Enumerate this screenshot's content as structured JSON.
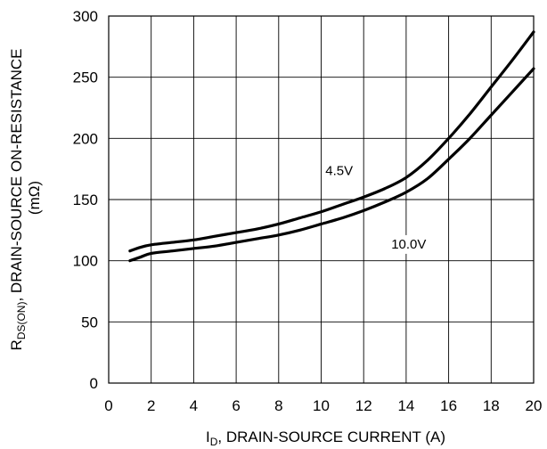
{
  "chart_data": {
    "type": "line",
    "title": "",
    "xlabel": {
      "symbol": "I",
      "subscript": "D",
      "text": ", DRAIN-SOURCE CURRENT (A)"
    },
    "ylabel": {
      "line1_symbol": "R",
      "line1_subscript": "DS(ON)",
      "line1_text": ", DRAIN-SOURCE ON-RESISTANCE",
      "line2": "(mΩ)"
    },
    "xlim": [
      0,
      20
    ],
    "ylim": [
      0,
      300
    ],
    "xticks": [
      0,
      2,
      4,
      6,
      8,
      10,
      12,
      14,
      16,
      18,
      20
    ],
    "yticks": [
      0,
      50,
      100,
      150,
      200,
      250,
      300
    ],
    "grid": true,
    "series": [
      {
        "name": "4.5V",
        "x": [
          1,
          1.5,
          2,
          3,
          4,
          5,
          6,
          7,
          8,
          9,
          10,
          11,
          12,
          13,
          14,
          15,
          16,
          17,
          18,
          19,
          20
        ],
        "y": [
          108,
          111,
          113,
          115,
          117,
          120,
          123,
          126,
          130,
          135,
          140,
          146,
          152,
          159,
          168,
          182,
          200,
          220,
          242,
          264,
          287
        ]
      },
      {
        "name": "10.0V",
        "x": [
          1,
          1.5,
          2,
          3,
          4,
          5,
          6,
          7,
          8,
          9,
          10,
          11,
          12,
          13,
          14,
          15,
          16,
          17,
          18,
          19,
          20
        ],
        "y": [
          100,
          103,
          106,
          108,
          110,
          112,
          115,
          118,
          121,
          125,
          130,
          135,
          141,
          148,
          156,
          167,
          183,
          200,
          219,
          238,
          257
        ]
      }
    ],
    "annotations": [
      {
        "text": "4.5V",
        "x": 10.2,
        "y": 170
      },
      {
        "text": "10.0V",
        "x": 13.3,
        "y": 110
      }
    ]
  }
}
